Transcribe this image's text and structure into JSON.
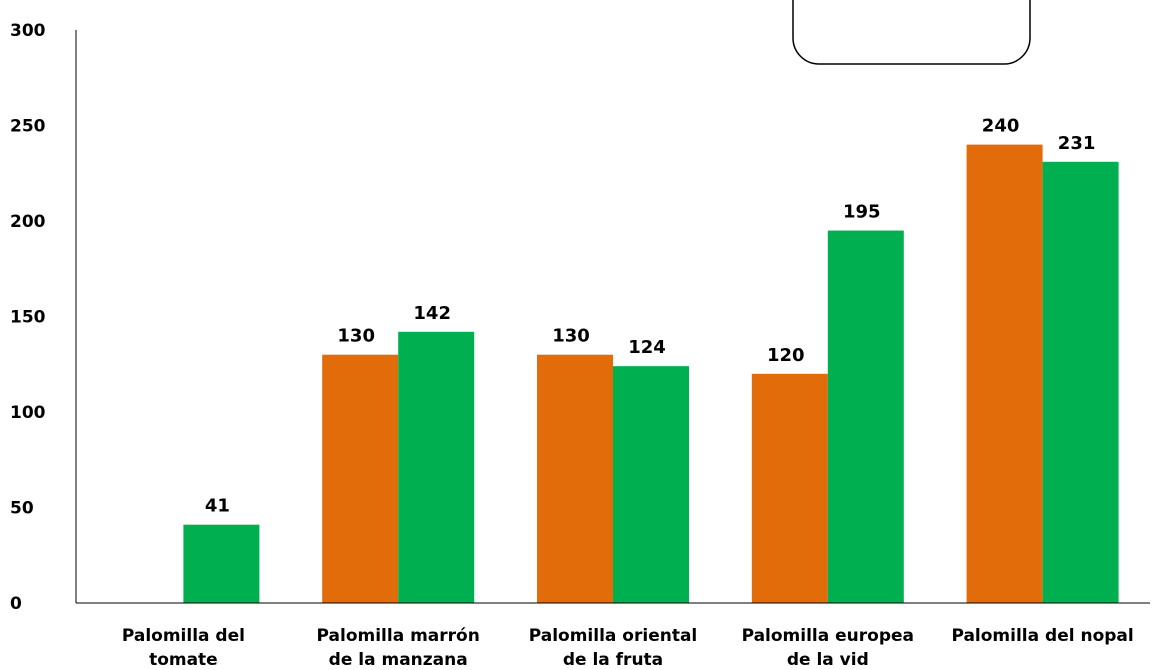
{
  "chart_data": {
    "type": "bar",
    "categories": [
      [
        "Palomilla del",
        "tomate"
      ],
      [
        "Palomilla marrón",
        "de la manzana"
      ],
      [
        "Palomilla oriental",
        "de la fruta"
      ],
      [
        "Palomilla europea",
        "de la vid"
      ],
      [
        "Palomilla del nopal"
      ]
    ],
    "series": [
      {
        "color": "#E36C0A",
        "values": [
          null,
          130,
          130,
          120,
          240
        ]
      },
      {
        "color": "#00B050",
        "values": [
          41,
          142,
          124,
          195,
          231
        ]
      }
    ],
    "ylim": [
      0,
      300
    ],
    "yticks": [
      0,
      50,
      100,
      150,
      200,
      250,
      300
    ],
    "grid": false,
    "legend": "top-right"
  }
}
